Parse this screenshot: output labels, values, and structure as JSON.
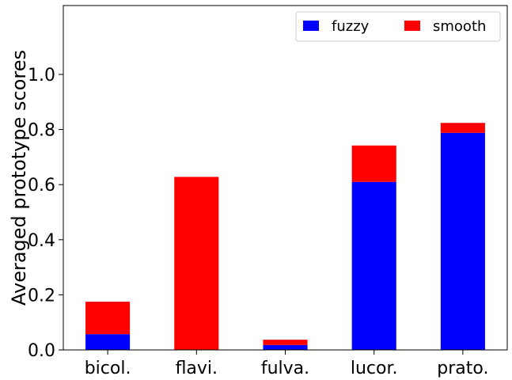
{
  "chart_data": {
    "type": "bar",
    "stacked": true,
    "categories": [
      "bicol.",
      "flavi.",
      "fulva.",
      "lucor.",
      "prato."
    ],
    "series": [
      {
        "name": "fuzzy",
        "color": "#0000ff",
        "values": [
          0.057,
          0.0,
          0.018,
          0.61,
          0.788
        ]
      },
      {
        "name": "smooth",
        "color": "#ff0000",
        "values": [
          0.118,
          0.628,
          0.019,
          0.132,
          0.036
        ]
      }
    ],
    "xlabel": "",
    "ylabel": "Averaged prototype scores",
    "ylim": [
      0,
      1.25
    ],
    "yticks": [
      "0.0",
      "0.2",
      "0.4",
      "0.6",
      "0.8",
      "1.0"
    ],
    "grid": false,
    "legend_position": "top-right",
    "legend_columns": 2
  }
}
